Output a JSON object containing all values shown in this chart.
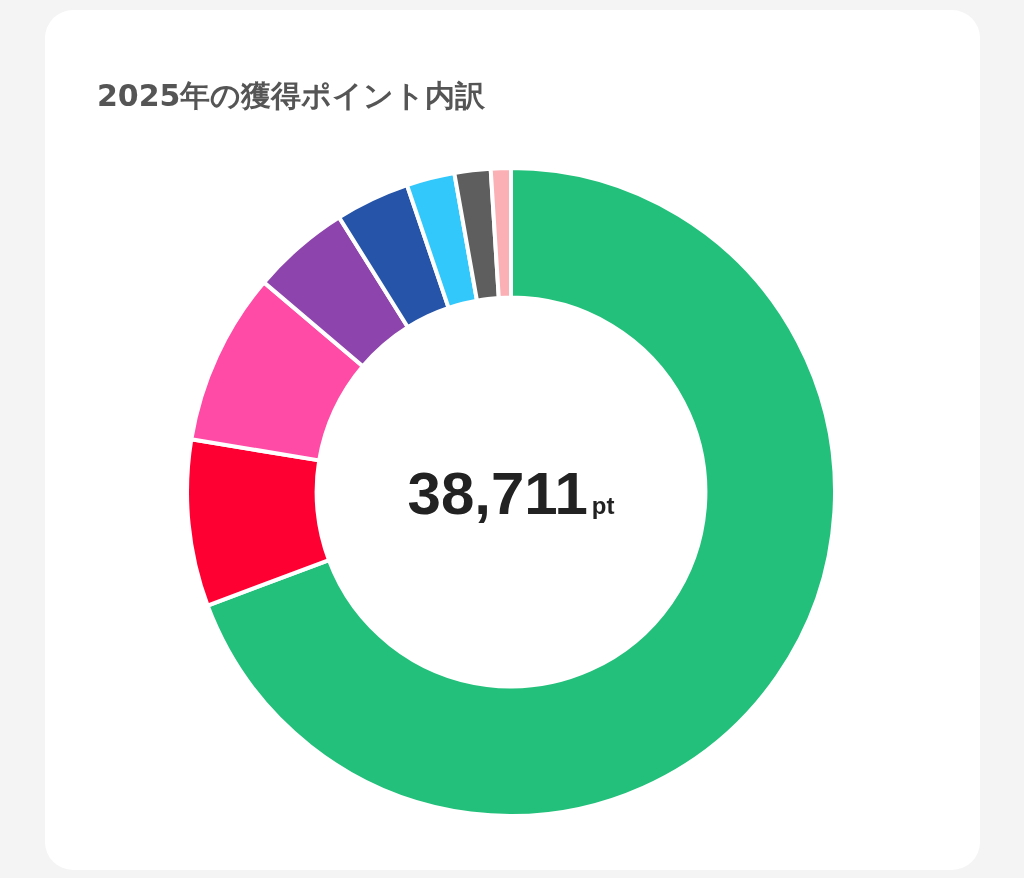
{
  "chart_data": {
    "type": "donut",
    "title": "2025年の獲得ポイント内訳",
    "categories": [
      null,
      null,
      null,
      null,
      null,
      null,
      null,
      null
    ],
    "values": [
      69.3,
      8.3,
      8.6,
      4.9,
      3.7,
      2.4,
      1.8,
      1.0
    ],
    "colors": [
      "#22c07a",
      "#ff0033",
      "#ff4aa6",
      "#8e44ad",
      "#2554a8",
      "#33c8fb",
      "#5e5e5e",
      "#fbb0b5"
    ],
    "annotations": [
      "38,711",
      "pt"
    ],
    "legend": false
  }
}
